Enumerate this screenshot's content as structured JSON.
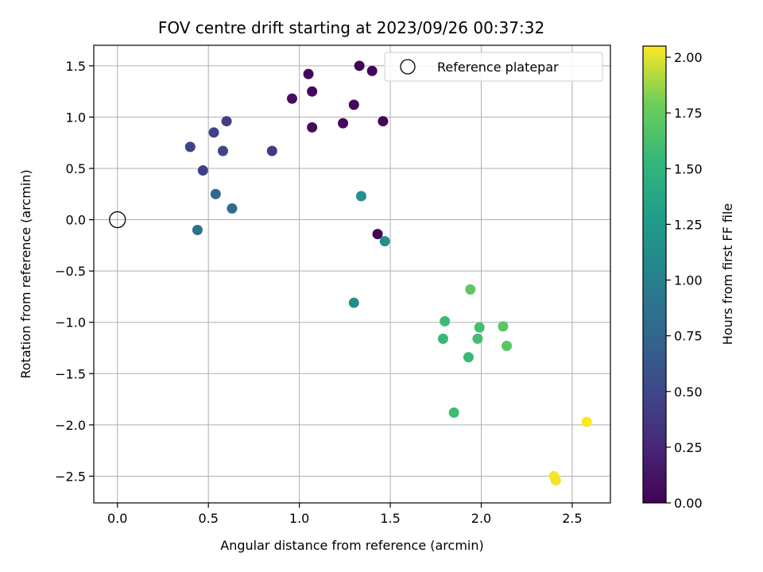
{
  "chart_data": {
    "type": "scatter",
    "title": "FOV centre drift starting at 2023/09/26 00:37:32",
    "xlabel": "Angular distance from reference (arcmin)",
    "ylabel": "Rotation from reference (arcmin)",
    "xlim": [
      -0.13,
      2.71
    ],
    "ylim": [
      -2.76,
      1.7
    ],
    "xticks": [
      "0.0",
      "0.5",
      "1.0",
      "1.5",
      "2.0",
      "2.5"
    ],
    "xtick_values": [
      0,
      0.5,
      1,
      1.5,
      2,
      2.5
    ],
    "yticks": [
      "−2.5",
      "−2.0",
      "−1.5",
      "−1.0",
      "−0.5",
      "0.0",
      "0.5",
      "1.0",
      "1.5"
    ],
    "ytick_values": [
      -2.5,
      -2,
      -1.5,
      -1,
      -0.5,
      0,
      0.5,
      1,
      1.5
    ],
    "grid": true,
    "colormap": "viridis",
    "colorbar": {
      "label": "Hours from first FF file",
      "range": [
        0,
        2.05
      ],
      "ticks": [
        "0.00",
        "0.25",
        "0.50",
        "0.75",
        "1.00",
        "1.25",
        "1.50",
        "1.75",
        "2.00"
      ],
      "tick_values": [
        0,
        0.25,
        0.5,
        0.75,
        1,
        1.25,
        1.5,
        1.75,
        2
      ]
    },
    "legend": {
      "position": "top-right",
      "label": "Reference platepar"
    },
    "reference": {
      "x": 0,
      "y": 0
    },
    "points": [
      {
        "x": 1.33,
        "y": 1.5,
        "c": 0.0
      },
      {
        "x": 1.4,
        "y": 1.45,
        "c": 0.02
      },
      {
        "x": 1.05,
        "y": 1.42,
        "c": 0.04
      },
      {
        "x": 1.07,
        "y": 1.25,
        "c": 0.05
      },
      {
        "x": 0.96,
        "y": 1.18,
        "c": 0.08
      },
      {
        "x": 1.3,
        "y": 1.12,
        "c": 0.05
      },
      {
        "x": 1.07,
        "y": 0.9,
        "c": 0.06
      },
      {
        "x": 1.24,
        "y": 0.94,
        "c": 0.06
      },
      {
        "x": 1.46,
        "y": 0.96,
        "c": 0.03
      },
      {
        "x": 1.43,
        "y": -0.14,
        "c": 0.02
      },
      {
        "x": 0.85,
        "y": 0.67,
        "c": 0.4
      },
      {
        "x": 0.6,
        "y": 0.96,
        "c": 0.42
      },
      {
        "x": 0.53,
        "y": 0.85,
        "c": 0.45
      },
      {
        "x": 0.4,
        "y": 0.71,
        "c": 0.46
      },
      {
        "x": 0.58,
        "y": 0.67,
        "c": 0.48
      },
      {
        "x": 0.47,
        "y": 0.48,
        "c": 0.44
      },
      {
        "x": 0.54,
        "y": 0.25,
        "c": 0.78
      },
      {
        "x": 0.63,
        "y": 0.11,
        "c": 0.82
      },
      {
        "x": 0.44,
        "y": -0.1,
        "c": 0.85
      },
      {
        "x": 1.34,
        "y": 0.23,
        "c": 1.15
      },
      {
        "x": 1.47,
        "y": -0.21,
        "c": 1.15
      },
      {
        "x": 1.3,
        "y": -0.81,
        "c": 1.12
      },
      {
        "x": 1.94,
        "y": -0.68,
        "c": 1.72
      },
      {
        "x": 1.8,
        "y": -0.99,
        "c": 1.58
      },
      {
        "x": 1.99,
        "y": -1.05,
        "c": 1.6
      },
      {
        "x": 2.12,
        "y": -1.04,
        "c": 1.7
      },
      {
        "x": 1.79,
        "y": -1.16,
        "c": 1.55
      },
      {
        "x": 1.98,
        "y": -1.16,
        "c": 1.6
      },
      {
        "x": 2.14,
        "y": -1.23,
        "c": 1.7
      },
      {
        "x": 1.93,
        "y": -1.34,
        "c": 1.56
      },
      {
        "x": 1.85,
        "y": -1.88,
        "c": 1.58
      },
      {
        "x": 2.58,
        "y": -1.97,
        "c": 2.05
      },
      {
        "x": 2.4,
        "y": -2.5,
        "c": 2.04
      },
      {
        "x": 2.41,
        "y": -2.54,
        "c": 2.03
      }
    ]
  }
}
